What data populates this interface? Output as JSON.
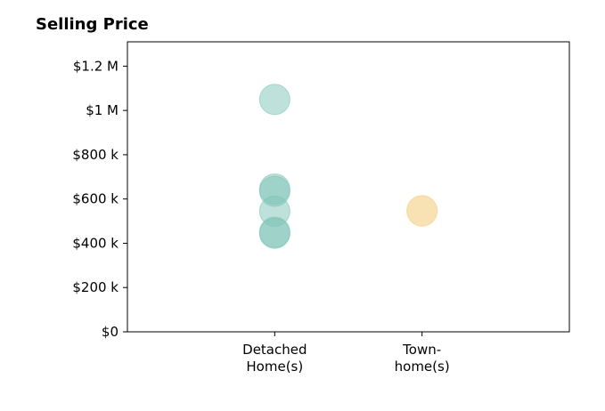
{
  "chart_data": {
    "type": "scatter",
    "title": "Selling Price",
    "xlabel": "",
    "ylabel": "",
    "categories": [
      [
        "Detached",
        "Home(s)"
      ],
      [
        "Town-",
        "home(s)"
      ]
    ],
    "y_ticks": [
      0,
      200000,
      400000,
      600000,
      800000,
      1000000,
      1200000
    ],
    "y_tick_labels": [
      "$0",
      "$200 k",
      "$400 k",
      "$600 k",
      "$800 k",
      "$1 M",
      "$1.2 M"
    ],
    "ylim": [
      0,
      1310000
    ],
    "x_range": [
      -1,
      2
    ],
    "grid": false,
    "series": [
      {
        "category_index": 0,
        "color": "#7fc4b8",
        "values": [
          1050000,
          645000,
          635000,
          545000,
          450000,
          445000
        ]
      },
      {
        "category_index": 1,
        "color": "#f5d79a",
        "values": [
          548000,
          545000
        ]
      }
    ]
  }
}
